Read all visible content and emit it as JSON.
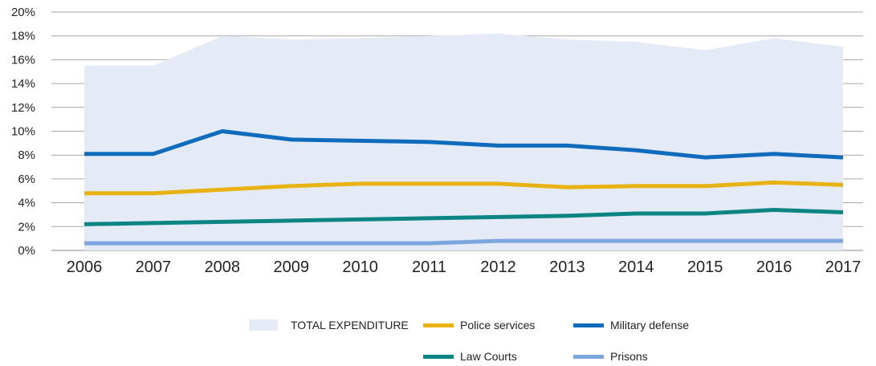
{
  "chart_data": {
    "type": "line",
    "x": [
      "2006",
      "2007",
      "2008",
      "2009",
      "2010",
      "2011",
      "2012",
      "2013",
      "2014",
      "2015",
      "2016",
      "2017"
    ],
    "ylim": [
      0,
      20
    ],
    "yticks": [
      "0%",
      "2%",
      "4%",
      "6%",
      "8%",
      "10%",
      "12%",
      "14%",
      "16%",
      "18%",
      "20%"
    ],
    "grid": "horizontal",
    "legend_position": "bottom",
    "series": [
      {
        "name": "TOTAL EXPENDITURE",
        "kind": "area",
        "color": "#e4ebf6",
        "values": [
          15.5,
          15.5,
          18.0,
          17.7,
          17.8,
          18.0,
          18.2,
          17.7,
          17.5,
          16.8,
          17.8,
          17.1
        ]
      },
      {
        "name": "Police services",
        "kind": "line",
        "color": "#e9b213",
        "values": [
          4.8,
          4.8,
          5.1,
          5.4,
          5.6,
          5.6,
          5.6,
          5.3,
          5.4,
          5.4,
          5.7,
          5.5
        ]
      },
      {
        "name": "Military defense",
        "kind": "line",
        "color": "#0f6cbd",
        "values": [
          8.1,
          8.1,
          10.0,
          9.3,
          9.2,
          9.1,
          8.8,
          8.8,
          8.4,
          7.8,
          8.1,
          7.8
        ]
      },
      {
        "name": "Law Courts",
        "kind": "line",
        "color": "#0b8584",
        "values": [
          2.2,
          2.3,
          2.4,
          2.5,
          2.6,
          2.7,
          2.8,
          2.9,
          3.1,
          3.1,
          3.4,
          3.2
        ]
      },
      {
        "name": "Prisons",
        "kind": "line",
        "color": "#7ea6de",
        "values": [
          0.6,
          0.6,
          0.6,
          0.6,
          0.6,
          0.6,
          0.8,
          0.8,
          0.8,
          0.8,
          0.8,
          0.8
        ]
      }
    ]
  }
}
